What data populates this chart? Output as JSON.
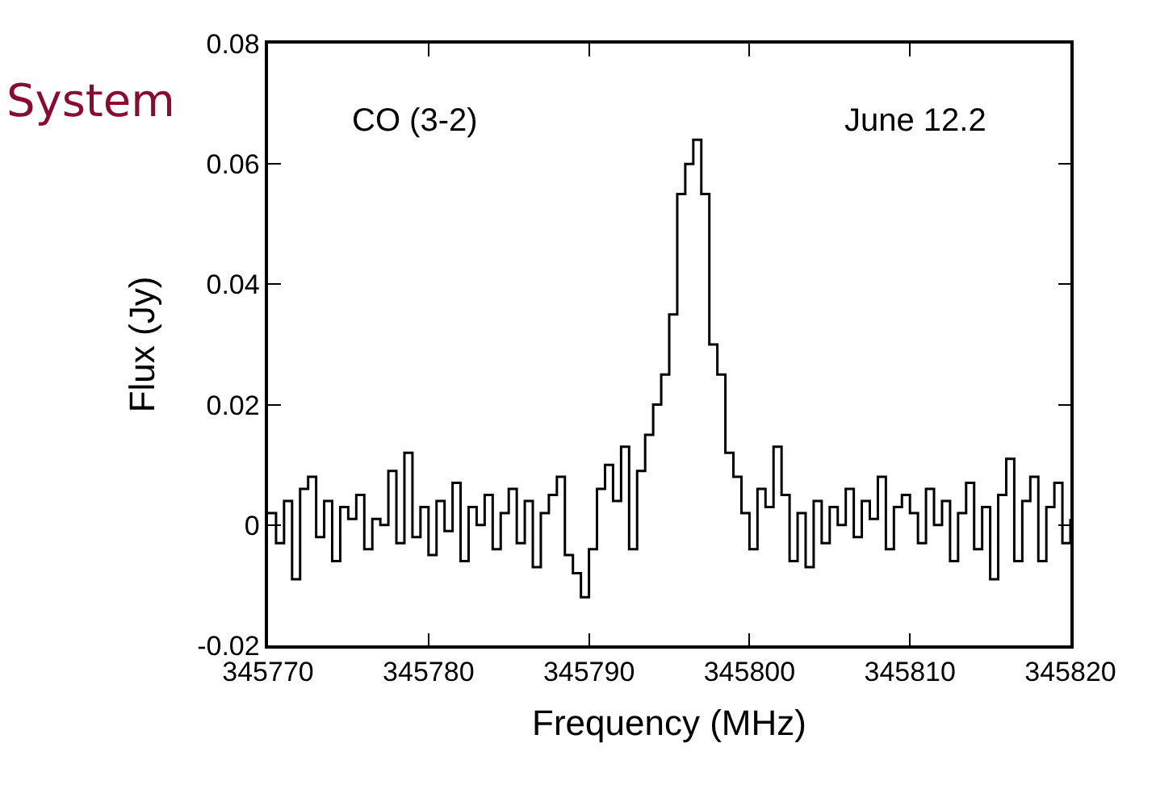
{
  "chart_data": {
    "type": "step",
    "xlabel": "Frequency (MHz)",
    "ylabel": "Flux (Jy)",
    "annotations": [
      "System",
      "CO (3-2)",
      "June 12.2"
    ],
    "xlim": [
      345770,
      345820
    ],
    "xticks": [
      345770,
      345780,
      345790,
      345800,
      345810,
      345820
    ],
    "ylim": [
      -0.02,
      0.08
    ],
    "yticks": [
      -0.02,
      0,
      0.02,
      0.04,
      0.06,
      0.08
    ],
    "legend": false,
    "marker": "none",
    "line_style": "solid",
    "series": [
      {
        "color": "#000000",
        "x": [
          345770,
          345770.5,
          345771,
          345771.5,
          345772,
          345772.5,
          345773,
          345773.5,
          345774,
          345774.5,
          345775,
          345775.5,
          345776,
          345776.5,
          345777,
          345777.5,
          345778,
          345778.5,
          345779,
          345779.5,
          345780,
          345780.5,
          345781,
          345781.5,
          345782,
          345782.5,
          345783,
          345783.5,
          345784,
          345784.5,
          345785,
          345785.5,
          345786,
          345786.5,
          345787,
          345787.5,
          345788,
          345788.5,
          345789,
          345789.5,
          345790,
          345790.5,
          345791,
          345791.5,
          345792,
          345792.5,
          345793,
          345793.5,
          345794,
          345794.5,
          345795,
          345795.5,
          345796,
          345796.5,
          345797,
          345797.5,
          345798,
          345798.5,
          345799,
          345799.5,
          345800,
          345800.5,
          345801,
          345801.5,
          345802,
          345802.5,
          345803,
          345803.5,
          345804,
          345804.5,
          345805,
          345805.5,
          345806,
          345806.5,
          345807,
          345807.5,
          345808,
          345808.5,
          345809,
          345809.5,
          345810,
          345810.5,
          345811,
          345811.5,
          345812,
          345812.5,
          345813,
          345813.5,
          345814,
          345814.5,
          345815,
          345815.5,
          345816,
          345816.5,
          345817,
          345817.5,
          345818,
          345818.5,
          345819,
          345819.5,
          345820
        ],
        "values": [
          0.002,
          -0.003,
          0.004,
          -0.009,
          0.006,
          0.008,
          -0.002,
          0.004,
          -0.006,
          0.003,
          0.001,
          0.005,
          -0.004,
          0.001,
          0.0,
          0.009,
          -0.003,
          0.012,
          -0.002,
          0.003,
          -0.005,
          0.004,
          -0.001,
          0.007,
          -0.006,
          0.003,
          0.0,
          0.005,
          -0.004,
          0.002,
          0.006,
          -0.003,
          0.004,
          -0.007,
          0.002,
          0.005,
          0.008,
          -0.005,
          -0.008,
          -0.012,
          -0.004,
          0.006,
          0.01,
          0.004,
          0.013,
          -0.004,
          0.009,
          0.015,
          0.02,
          0.025,
          0.035,
          0.055,
          0.06,
          0.064,
          0.055,
          0.03,
          0.025,
          0.012,
          0.008,
          0.002,
          -0.004,
          0.006,
          0.003,
          0.013,
          0.005,
          -0.006,
          0.002,
          -0.007,
          0.004,
          -0.003,
          0.003,
          0.0,
          0.006,
          -0.002,
          0.004,
          0.001,
          0.008,
          -0.004,
          0.003,
          0.005,
          0.002,
          -0.003,
          0.006,
          0.0,
          0.004,
          -0.006,
          0.002,
          0.007,
          -0.004,
          0.003,
          -0.009,
          0.005,
          0.011,
          -0.006,
          0.004,
          0.008,
          -0.006,
          0.003,
          0.007,
          -0.003,
          0.001
        ]
      }
    ]
  }
}
